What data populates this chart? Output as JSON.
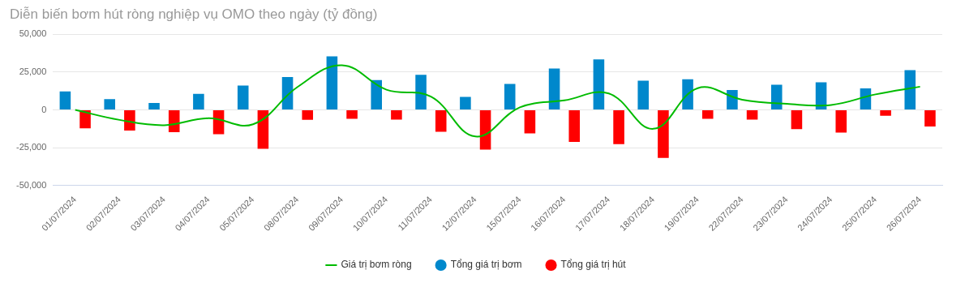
{
  "chart_data": {
    "type": "bar",
    "title": "Diễn biến bơm hút ròng nghiệp vụ OMO theo ngày (tỷ đồng)",
    "categories": [
      "01/07/2024",
      "02/07/2024",
      "03/07/2024",
      "04/07/2024",
      "05/07/2024",
      "08/07/2024",
      "09/07/2024",
      "10/07/2024",
      "11/07/2024",
      "12/07/2024",
      "15/07/2024",
      "16/07/2024",
      "17/07/2024",
      "18/07/2024",
      "19/07/2024",
      "22/07/2024",
      "23/07/2024",
      "24/07/2024",
      "25/07/2024",
      "26/07/2024"
    ],
    "series": [
      {
        "name": "Tổng giá trị bơm",
        "color": "#0088cc",
        "values": [
          12200,
          7100,
          4600,
          10600,
          16200,
          21800,
          35500,
          19800,
          23300,
          8600,
          17200,
          27400,
          33500,
          19300,
          20300,
          13200,
          16700,
          18300,
          14200,
          26400
        ]
      },
      {
        "name": "Tổng giá trị hút",
        "color": "#ff0000",
        "values": [
          -12200,
          -13700,
          -14700,
          -16100,
          -25700,
          -6600,
          -5900,
          -6400,
          -14500,
          -26200,
          -15500,
          -21100,
          -22600,
          -31800,
          -5900,
          -6400,
          -12700,
          -15000,
          -3900,
          -11000
        ]
      },
      {
        "name": "Giá trị bơm ròng",
        "color": "#00bb00",
        "type": "line",
        "values": [
          0,
          -6600,
          -10100,
          -5500,
          -9500,
          15200,
          29600,
          13400,
          8800,
          -17600,
          1700,
          6300,
          10900,
          -12500,
          14400,
          6800,
          4000,
          3300,
          10300,
          15400
        ]
      }
    ],
    "ylim": [
      -50000,
      50000
    ],
    "yticks": [
      {
        "value": -50000,
        "label": "-50,000"
      },
      {
        "value": -25000,
        "label": "-25,000"
      },
      0,
      {
        "value": 25000,
        "label": "25,000"
      },
      {
        "value": 50000,
        "label": "50,000"
      }
    ],
    "grid": "y",
    "legend": "bottom",
    "marker": "none",
    "line_style": "solid"
  }
}
